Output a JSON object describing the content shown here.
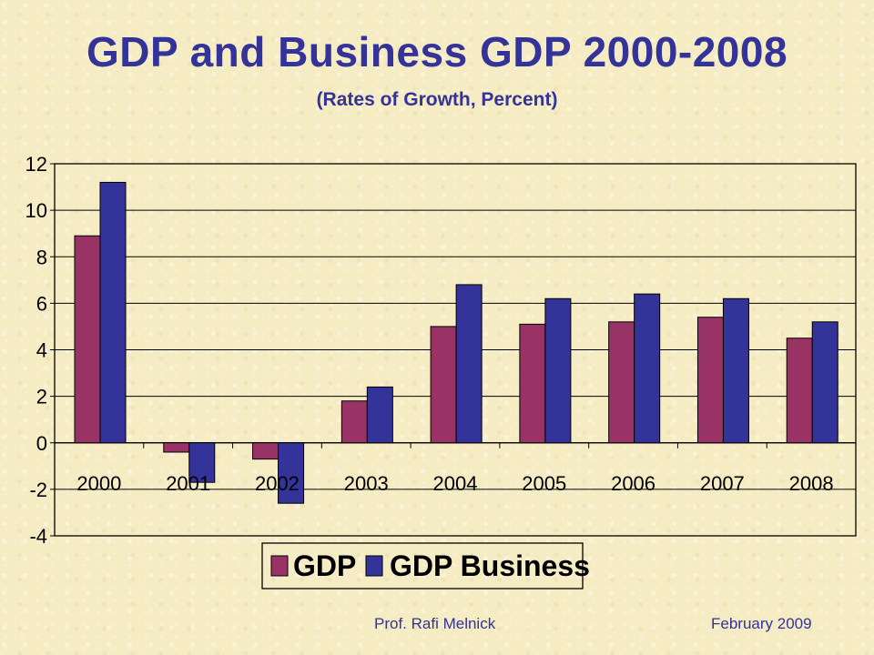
{
  "title": "GDP and Business GDP 2000-2008",
  "subtitle": "(Rates of Growth, Percent)",
  "footer": {
    "author": "Prof. Rafi Melnick",
    "date": "February 2009"
  },
  "colors": {
    "gdp": "#993366",
    "gdp_business": "#333399",
    "text": "#33339a"
  },
  "chart_data": {
    "type": "bar",
    "categories": [
      "2000",
      "2001",
      "2002",
      "2003",
      "2004",
      "2005",
      "2006",
      "2007",
      "2008"
    ],
    "series": [
      {
        "name": "GDP",
        "values": [
          8.9,
          -0.4,
          -0.7,
          1.8,
          5.0,
          5.1,
          5.2,
          5.4,
          4.5
        ]
      },
      {
        "name": "GDP Business",
        "values": [
          11.2,
          -1.7,
          -2.6,
          2.4,
          6.8,
          6.2,
          6.4,
          6.2,
          5.2
        ]
      }
    ],
    "yticks": [
      "12",
      "10",
      "8",
      "6",
      "4",
      "2",
      "0",
      "-2",
      "-4"
    ],
    "ylim": [
      -4,
      12
    ],
    "xlabel": "",
    "ylabel": "",
    "grid": true,
    "legend": "bottom"
  }
}
